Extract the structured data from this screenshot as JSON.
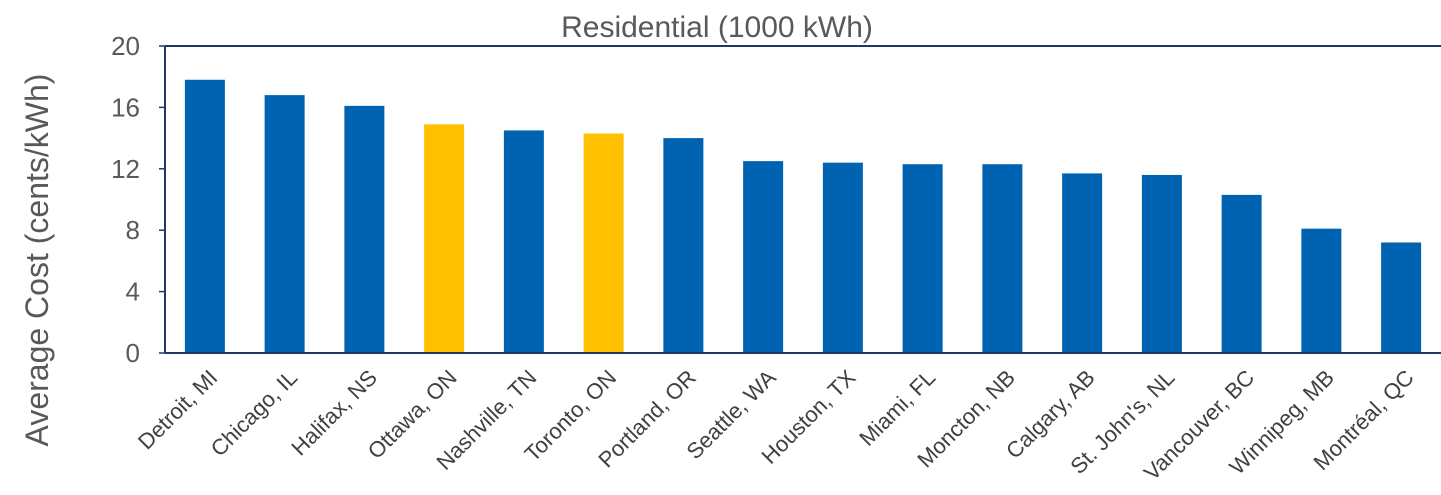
{
  "chart_data": {
    "type": "bar",
    "title": "Residential (1000 kWh)",
    "ylabel": "Average Cost (cents/kWh)",
    "xlabel": "",
    "ylim": [
      0,
      20
    ],
    "yticks": [
      0,
      4,
      8,
      12,
      16,
      20
    ],
    "grid": false,
    "categories": [
      "Detroit, MI",
      "Chicago, IL",
      "Halifax, NS",
      "Ottawa, ON",
      "Nashville, TN",
      "Toronto, ON",
      "Portland, OR",
      "Seattle, WA",
      "Houston, TX",
      "Miami, FL",
      "Moncton, NB",
      "Calgary, AB",
      "St. John's, NL",
      "Vancouver, BC",
      "Winnipeg, MB",
      "Montréal, QC"
    ],
    "values": [
      17.8,
      16.8,
      16.1,
      14.9,
      14.5,
      14.3,
      14.0,
      12.5,
      12.4,
      12.3,
      12.3,
      11.7,
      11.6,
      10.3,
      8.1,
      7.2
    ],
    "highlighted": [
      "Ottawa, ON",
      "Toronto, ON"
    ],
    "colors": {
      "bar": "#0063B1",
      "highlight": "#FFC000",
      "axis": "#1F3864",
      "text": "#595959"
    }
  }
}
